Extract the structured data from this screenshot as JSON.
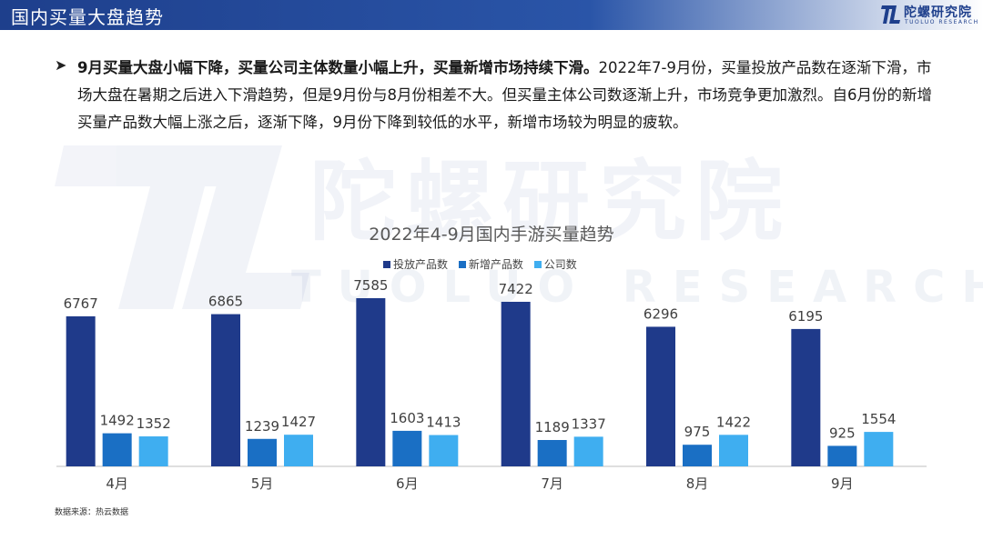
{
  "header": {
    "title": "国内买量大盘趋势",
    "logo_cn": "陀螺研究院",
    "logo_en": "TUOLUO RESEARCH"
  },
  "watermark": {
    "cn": "陀螺研究院",
    "en": "TUOLUO RESEARCH"
  },
  "summary": {
    "bold": "9月买量大盘小幅下降，买量公司主体数量小幅上升，买量新增市场持续下滑。",
    "text": "2022年7-9月份，买量投放产品数在逐渐下滑，市场大盘在暑期之后进入下滑趋势，但是9月份与8月份相差不大。但买量主体公司数逐渐上升，市场竞争更加激烈。自6月份的新增买量产品数大幅上涨之后，逐渐下降，9月份下降到较低的水平，新增市场较为明显的疲软。"
  },
  "source": "数据来源：热云数据",
  "colors": {
    "series1": "#1f3a8a",
    "series2": "#1a6fc4",
    "series3": "#3faef0",
    "axis": "#bfbfbf"
  },
  "chart_data": {
    "type": "bar",
    "title": "2022年4-9月国内手游买量趋势",
    "categories": [
      "4月",
      "5月",
      "6月",
      "7月",
      "8月",
      "9月"
    ],
    "series": [
      {
        "name": "投放产品数",
        "values": [
          6767,
          6865,
          7585,
          7422,
          6296,
          6195
        ]
      },
      {
        "name": "新增产品数",
        "values": [
          1492,
          1239,
          1603,
          1189,
          975,
          925
        ]
      },
      {
        "name": "公司数",
        "values": [
          1352,
          1427,
          1413,
          1337,
          1422,
          1554
        ]
      }
    ],
    "ylim": [
      0,
      8000
    ],
    "grid": false,
    "legend_position": "top-center",
    "data_labels": true
  }
}
